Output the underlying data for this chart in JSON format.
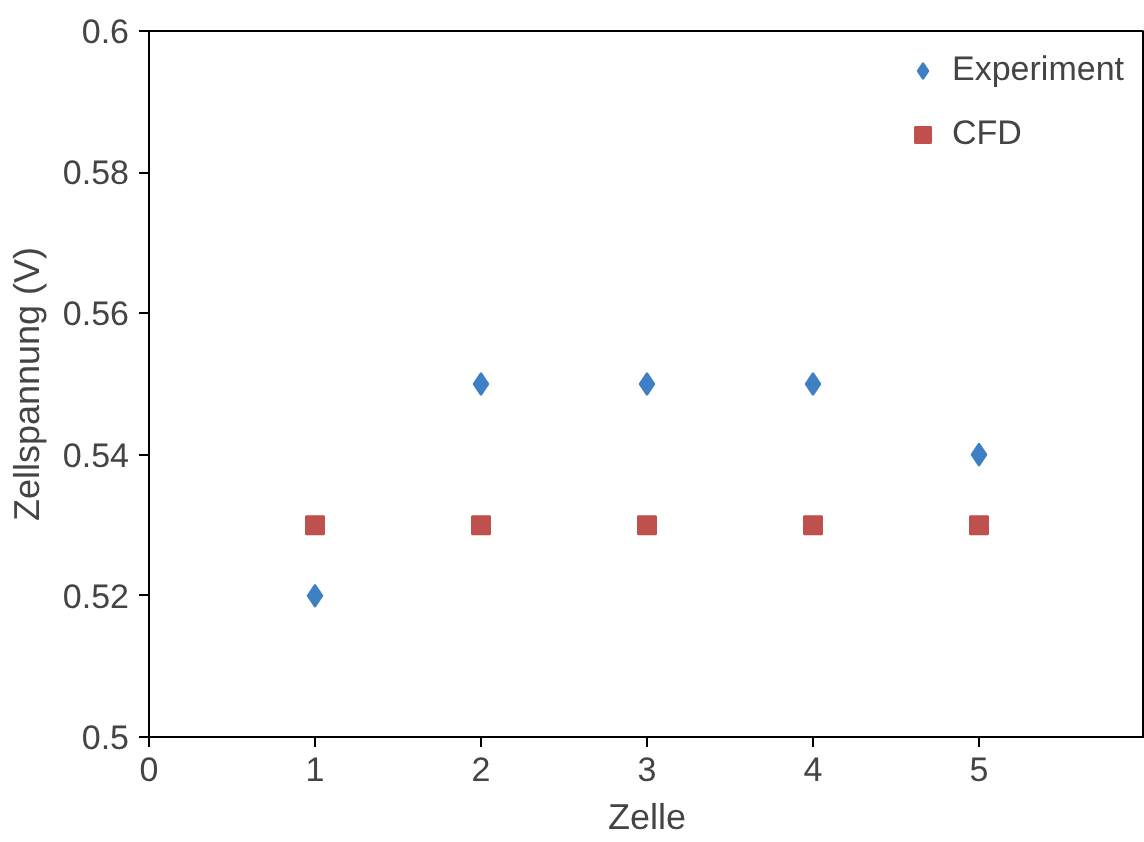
{
  "chart_data": {
    "type": "scatter",
    "xlabel": "Zelle",
    "ylabel": "Zellspannung (V)",
    "x": [
      1,
      2,
      3,
      4,
      5
    ],
    "series": [
      {
        "name": "Experiment",
        "color": "#3f7fc4",
        "marker": "diamond",
        "values": [
          0.52,
          0.55,
          0.55,
          0.55,
          0.54
        ]
      },
      {
        "name": "CFD",
        "color": "#c0504d",
        "marker": "square",
        "values": [
          0.53,
          0.53,
          0.53,
          0.53,
          0.53
        ]
      }
    ],
    "xlim": [
      0,
      6
    ],
    "ylim": [
      0.5,
      0.6
    ],
    "xticks": [
      0,
      1,
      2,
      3,
      4,
      5
    ],
    "yticks": [
      0.5,
      0.52,
      0.54,
      0.56,
      0.58,
      0.6
    ],
    "grid": false,
    "legend": "top right"
  }
}
